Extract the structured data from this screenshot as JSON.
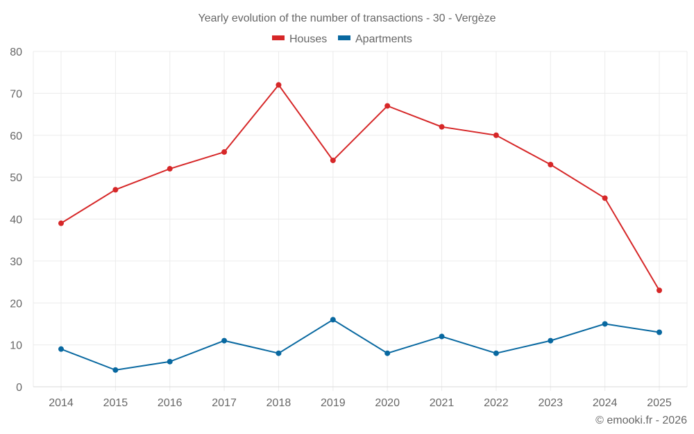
{
  "chart_data": {
    "type": "line",
    "title": "Yearly evolution of the number of transactions - 30 - Vergèze",
    "xlabel": "",
    "ylabel": "",
    "categories": [
      "2014",
      "2015",
      "2016",
      "2017",
      "2018",
      "2019",
      "2020",
      "2021",
      "2022",
      "2023",
      "2024",
      "2025"
    ],
    "series": [
      {
        "name": "Houses",
        "color": "#d62728",
        "values": [
          39,
          47,
          52,
          56,
          72,
          54,
          67,
          62,
          60,
          53,
          45,
          23
        ]
      },
      {
        "name": "Apartments",
        "color": "#0868a0",
        "values": [
          9,
          4,
          6,
          11,
          8,
          16,
          8,
          12,
          8,
          11,
          15,
          13
        ]
      }
    ],
    "ylim": [
      0,
      80
    ],
    "yticks": [
      0,
      10,
      20,
      30,
      40,
      50,
      60,
      70,
      80
    ],
    "grid": true,
    "legend_position": "top-center"
  },
  "footer": "© emooki.fr - 2026"
}
